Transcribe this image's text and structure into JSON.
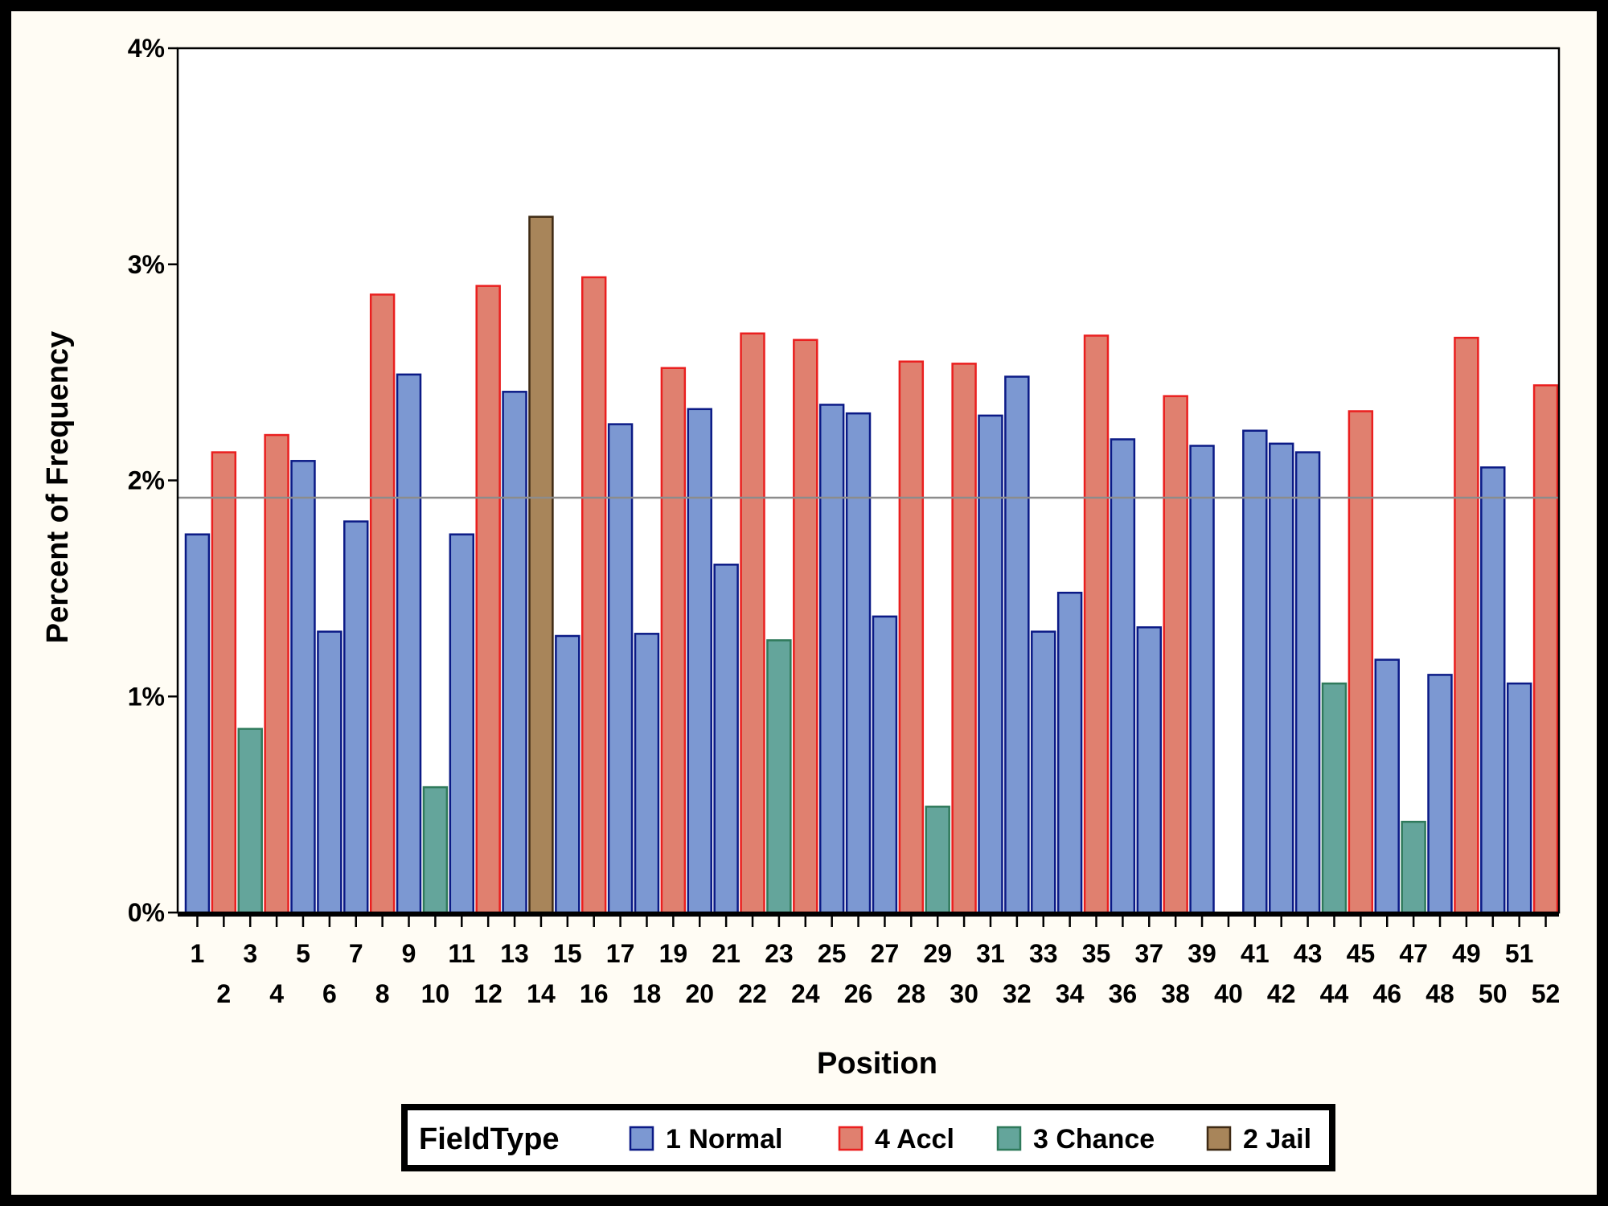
{
  "chart_data": {
    "type": "bar",
    "xlabel": "Position",
    "ylabel": "Percent of Frequency",
    "ylim": [
      0,
      4
    ],
    "y_ticks": [
      "0%",
      "1%",
      "2%",
      "3%",
      "4%"
    ],
    "y_tick_values": [
      0,
      1,
      2,
      3,
      4
    ],
    "reference_line": 1.92,
    "categories": [
      "1",
      "2",
      "3",
      "4",
      "5",
      "6",
      "7",
      "8",
      "9",
      "10",
      "11",
      "12",
      "13",
      "14",
      "15",
      "16",
      "17",
      "18",
      "19",
      "20",
      "21",
      "22",
      "23",
      "24",
      "25",
      "26",
      "27",
      "28",
      "29",
      "30",
      "31",
      "32",
      "33",
      "34",
      "35",
      "36",
      "37",
      "38",
      "39",
      "40",
      "41",
      "42",
      "43",
      "44",
      "45",
      "46",
      "47",
      "48",
      "49",
      "50",
      "51",
      "52"
    ],
    "values": [
      1.75,
      2.13,
      0.85,
      2.21,
      2.09,
      1.3,
      1.81,
      2.86,
      2.49,
      0.58,
      1.75,
      2.9,
      2.41,
      3.22,
      1.28,
      2.94,
      2.26,
      1.29,
      2.52,
      2.33,
      1.61,
      2.68,
      1.26,
      2.65,
      2.35,
      2.31,
      1.37,
      2.55,
      0.49,
      2.54,
      2.3,
      2.48,
      1.3,
      1.48,
      2.67,
      2.19,
      1.32,
      2.39,
      2.16,
      0,
      2.23,
      2.17,
      2.13,
      1.06,
      2.32,
      1.17,
      0.42,
      1.1,
      2.66,
      2.06,
      1.06,
      2.44
    ],
    "groups": [
      "1 Normal",
      "4 Accl",
      "3 Chance",
      "4 Accl",
      "1 Normal",
      "1 Normal",
      "1 Normal",
      "4 Accl",
      "1 Normal",
      "3 Chance",
      "1 Normal",
      "4 Accl",
      "1 Normal",
      "2 Jail",
      "1 Normal",
      "4 Accl",
      "1 Normal",
      "1 Normal",
      "4 Accl",
      "1 Normal",
      "1 Normal",
      "4 Accl",
      "3 Chance",
      "4 Accl",
      "1 Normal",
      "1 Normal",
      "1 Normal",
      "4 Accl",
      "3 Chance",
      "4 Accl",
      "1 Normal",
      "1 Normal",
      "1 Normal",
      "1 Normal",
      "4 Accl",
      "1 Normal",
      "1 Normal",
      "4 Accl",
      "1 Normal",
      "1 Normal",
      "1 Normal",
      "1 Normal",
      "1 Normal",
      "3 Chance",
      "4 Accl",
      "1 Normal",
      "3 Chance",
      "1 Normal",
      "4 Accl",
      "1 Normal",
      "1 Normal",
      "4 Accl"
    ],
    "legend": {
      "title": "FieldType",
      "position": "bottom",
      "entries": [
        {
          "name": "1 Normal",
          "fill": "#7c98d2",
          "stroke": "#0b1a86"
        },
        {
          "name": "4 Accl",
          "fill": "#e0806f",
          "stroke": "#ea1f1f"
        },
        {
          "name": "3 Chance",
          "fill": "#64a59b",
          "stroke": "#2f7a5b"
        },
        {
          "name": "2 Jail",
          "fill": "#a8855a",
          "stroke": "#3e2a14"
        }
      ]
    },
    "reference_line_color": "#8c8c8c",
    "background": "#fffcf4"
  }
}
